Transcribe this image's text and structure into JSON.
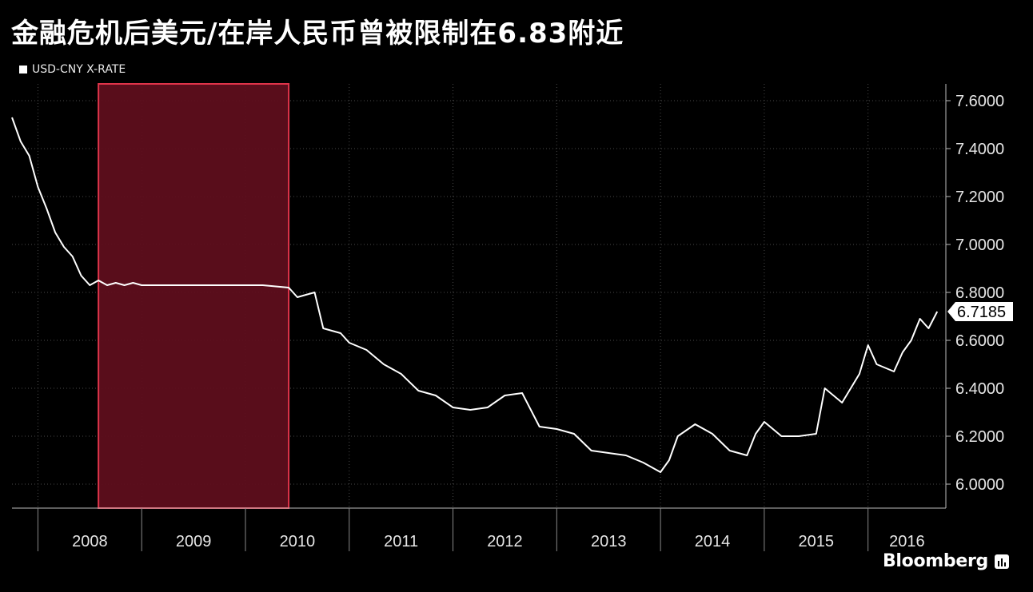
{
  "title": "金融危机后美元/在岸人民币曾被限制在6.83附近",
  "brand": "Bloomberg",
  "colors": {
    "background": "#000000",
    "line": "#ffffff",
    "highlight_fill": "#5e0e1c",
    "highlight_stroke": "#e0344a",
    "grid": "#4a4a4a"
  },
  "chart_data": {
    "type": "line",
    "series": [
      {
        "name": "USD-CNY X-RATE",
        "x": [
          "2007-10",
          "2007-11",
          "2007-12",
          "2008-01",
          "2008-02",
          "2008-03",
          "2008-04",
          "2008-05",
          "2008-06",
          "2008-07",
          "2008-08",
          "2008-09",
          "2008-10",
          "2008-11",
          "2008-12",
          "2009-01",
          "2009-03",
          "2009-06",
          "2009-09",
          "2009-12",
          "2010-03",
          "2010-06",
          "2010-07",
          "2010-09",
          "2010-10",
          "2010-12",
          "2011-01",
          "2011-03",
          "2011-05",
          "2011-07",
          "2011-09",
          "2011-11",
          "2012-01",
          "2012-03",
          "2012-05",
          "2012-07",
          "2012-09",
          "2012-11",
          "2013-01",
          "2013-03",
          "2013-05",
          "2013-07",
          "2013-09",
          "2013-11",
          "2014-01",
          "2014-02",
          "2014-03",
          "2014-05",
          "2014-07",
          "2014-09",
          "2014-11",
          "2014-12",
          "2015-01",
          "2015-03",
          "2015-05",
          "2015-07",
          "2015-08",
          "2015-09",
          "2015-10",
          "2015-12",
          "2016-01",
          "2016-02",
          "2016-04",
          "2016-05",
          "2016-06",
          "2016-07",
          "2016-08",
          "2016-09"
        ],
        "values": [
          7.53,
          7.43,
          7.37,
          7.24,
          7.15,
          7.05,
          6.99,
          6.95,
          6.87,
          6.83,
          6.85,
          6.83,
          6.84,
          6.83,
          6.84,
          6.83,
          6.83,
          6.83,
          6.83,
          6.83,
          6.83,
          6.82,
          6.78,
          6.8,
          6.65,
          6.63,
          6.59,
          6.56,
          6.5,
          6.46,
          6.39,
          6.37,
          6.32,
          6.31,
          6.32,
          6.37,
          6.38,
          6.24,
          6.23,
          6.21,
          6.14,
          6.13,
          6.12,
          6.09,
          6.05,
          6.1,
          6.2,
          6.25,
          6.21,
          6.14,
          6.12,
          6.21,
          6.26,
          6.2,
          6.2,
          6.21,
          6.4,
          6.37,
          6.34,
          6.46,
          6.58,
          6.5,
          6.47,
          6.55,
          6.6,
          6.69,
          6.65,
          6.72
        ]
      }
    ],
    "last_value_label": "6.7185",
    "x_tick_labels": [
      "2008",
      "2009",
      "2010",
      "2011",
      "2012",
      "2013",
      "2014",
      "2015",
      "2016"
    ],
    "y_tick_labels": [
      "7.6000",
      "7.4000",
      "7.2000",
      "7.0000",
      "6.8000",
      "6.6000",
      "6.4000",
      "6.2000",
      "6.0000"
    ],
    "y_ticks": [
      7.6,
      7.4,
      7.2,
      7.0,
      6.8,
      6.6,
      6.4,
      6.2,
      6.0
    ],
    "ylim": [
      5.9,
      7.67
    ],
    "xlim": [
      "2007-10",
      "2016-10"
    ],
    "highlight": {
      "start": "2008-08",
      "end": "2010-06"
    },
    "grid": true,
    "legend_position": "top-left"
  }
}
